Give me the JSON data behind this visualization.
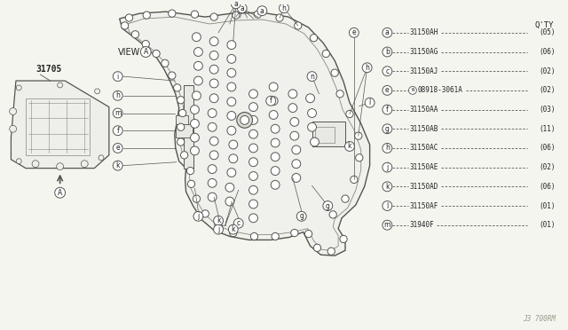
{
  "bg_color": "#f5f5f0",
  "title_part_num": "31705",
  "diagram_label": "J3 700RM",
  "view_label": "VIEW",
  "parts": [
    {
      "label": "a",
      "part_num": "31150AH",
      "qty": "(05)"
    },
    {
      "label": "b",
      "part_num": "31150AG",
      "qty": "(06)"
    },
    {
      "label": "c",
      "part_num": "31150AJ",
      "qty": "(02)"
    },
    {
      "label": "e",
      "part_num": "08918-3061A",
      "qty": "(02)",
      "prefix": "N"
    },
    {
      "label": "f",
      "part_num": "31150AA",
      "qty": "(03)"
    },
    {
      "label": "g",
      "part_num": "31150AB",
      "qty": "(11)"
    },
    {
      "label": "h",
      "part_num": "31150AC",
      "qty": "(06)"
    },
    {
      "label": "j",
      "part_num": "31150AE",
      "qty": "(02)"
    },
    {
      "label": "k",
      "part_num": "31150AD",
      "qty": "(06)"
    },
    {
      "label": "l",
      "part_num": "31150AF",
      "qty": "(01)"
    },
    {
      "label": "m",
      "part_num": "31940F",
      "qty": "(01)"
    }
  ],
  "qty_header": "Q'TY",
  "line_color": "#888880",
  "text_color": "#222222",
  "lc_dark": "#555550"
}
